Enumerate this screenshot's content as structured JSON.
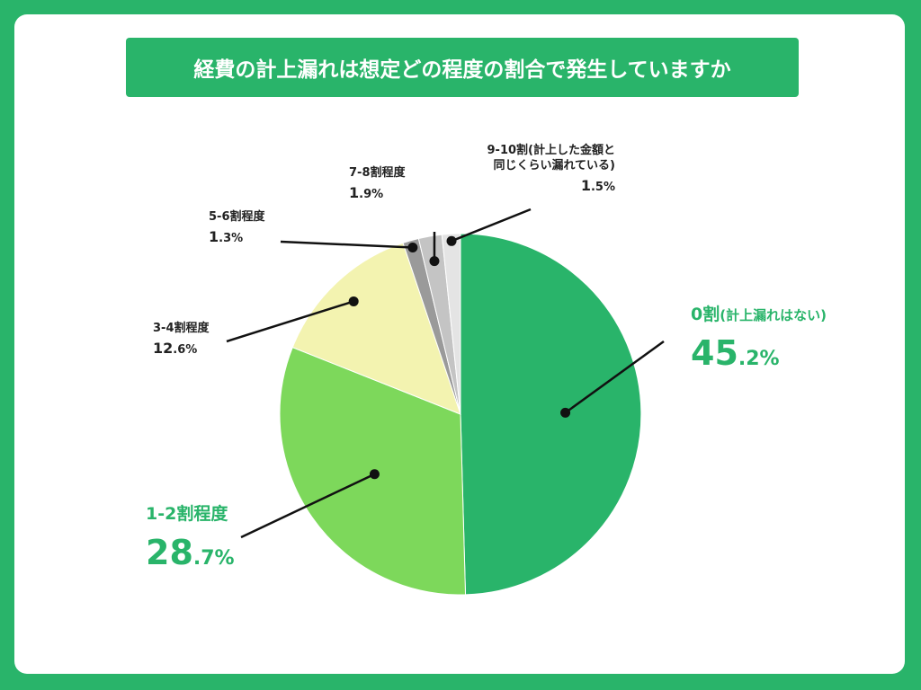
{
  "title": "経費の計上漏れは想定どの程度の割合で発生していますか",
  "colors": {
    "background": "#29b46a",
    "card": "#ffffff",
    "accent": "#29b46a"
  },
  "chart_data": {
    "type": "pie",
    "title": "経費の計上漏れは想定どの程度の割合で発生していますか",
    "slices": [
      {
        "label": "0割",
        "sublabel": "(計上漏れはない)",
        "value": 45.2,
        "int": "45",
        "dec": ".2%",
        "color": "#29b46a"
      },
      {
        "label": "1-2割程度",
        "value": 28.7,
        "int": "28",
        "dec": ".7%",
        "color": "#7dd85b"
      },
      {
        "label": "3-4割程度",
        "value": 12.6,
        "int": "12",
        "dec": ".6%",
        "color": "#f3f3b0"
      },
      {
        "label": "5-6割程度",
        "value": 1.3,
        "int": "1",
        "dec": ".3%",
        "color": "#9a9a9a"
      },
      {
        "label": "7-8割程度",
        "value": 1.9,
        "int": "1",
        "dec": ".9%",
        "color": "#c4c4c4"
      },
      {
        "label": "9-10割(計上した金額と",
        "label2": "同じくらい漏れている)",
        "value": 1.5,
        "int": "1",
        "dec": ".5%",
        "color": "#e4e4e4"
      }
    ]
  }
}
